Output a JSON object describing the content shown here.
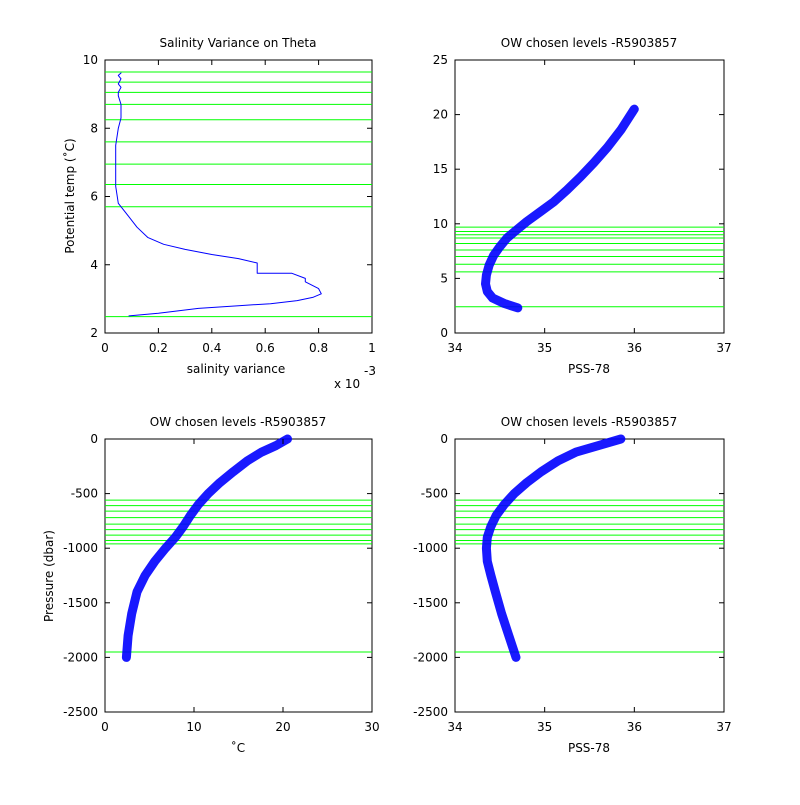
{
  "figure": {
    "colors": {
      "background": "#ffffff",
      "data_line": "#0000ff",
      "level_line": "#00ff00",
      "axes": "#000000"
    }
  },
  "chart_data": [
    {
      "id": "salinity-variance",
      "type": "line",
      "title": "Salinity Variance on Theta",
      "xlabel": "salinity variance",
      "ylabel": "Potential temp (˚C)",
      "xlim": [
        0,
        1
      ],
      "ylim": [
        2,
        10
      ],
      "x_multiplier_label": "x 10",
      "x_multiplier_exponent": "-3",
      "xticks": [
        0,
        0.2,
        0.4,
        0.6,
        0.8,
        1
      ],
      "yticks": [
        2,
        4,
        6,
        8,
        10
      ],
      "xtick_labels": [
        "0",
        "0.2",
        "0.4",
        "0.6",
        "0.8",
        "1"
      ],
      "ytick_labels": [
        "2",
        "4",
        "6",
        "8",
        "10"
      ],
      "grid": false,
      "series": [
        {
          "x": [
            0.09,
            0.2,
            0.35,
            0.5,
            0.62,
            0.72,
            0.78,
            0.81,
            0.8,
            0.75,
            0.75,
            0.7,
            0.57,
            0.57,
            0.5,
            0.4,
            0.3,
            0.22,
            0.16,
            0.12,
            0.08,
            0.05,
            0.04,
            0.04,
            0.04,
            0.05,
            0.06,
            0.06,
            0.05,
            0.05,
            0.06,
            0.05,
            0.06,
            0.05,
            0.06
          ],
          "y": [
            2.5,
            2.58,
            2.72,
            2.8,
            2.86,
            2.95,
            3.05,
            3.15,
            3.3,
            3.5,
            3.6,
            3.75,
            3.75,
            4.05,
            4.18,
            4.3,
            4.45,
            4.6,
            4.8,
            5.1,
            5.5,
            5.8,
            6.3,
            6.9,
            7.5,
            8.0,
            8.3,
            8.7,
            8.95,
            9.05,
            9.2,
            9.3,
            9.45,
            9.55,
            9.62
          ]
        }
      ],
      "hlines": [
        2.48,
        5.7,
        6.35,
        6.95,
        7.6,
        8.25,
        8.7,
        9.05,
        9.35,
        9.65
      ]
    },
    {
      "id": "theta-salinity",
      "type": "line",
      "title": "OW chosen levels -R5903857",
      "xlabel": "PSS-78",
      "ylabel": "",
      "xlim": [
        34,
        37
      ],
      "ylim": [
        0,
        25
      ],
      "xticks": [
        34,
        35,
        36,
        37
      ],
      "yticks": [
        0,
        5,
        10,
        15,
        20,
        25
      ],
      "xtick_labels": [
        "34",
        "35",
        "36",
        "37"
      ],
      "ytick_labels": [
        "0",
        "5",
        "10",
        "15",
        "20",
        "25"
      ],
      "grid": false,
      "series": [
        {
          "x": [
            34.7,
            34.55,
            34.42,
            34.36,
            34.34,
            34.35,
            34.38,
            34.43,
            34.5,
            34.58,
            34.68,
            34.8,
            34.95,
            35.1,
            35.25,
            35.4,
            35.55,
            35.7,
            35.85,
            36.0
          ],
          "y": [
            2.3,
            2.7,
            3.2,
            3.8,
            4.5,
            5.3,
            6.2,
            7.1,
            7.9,
            8.7,
            9.4,
            10.2,
            11.1,
            12.0,
            13.1,
            14.3,
            15.6,
            17.0,
            18.6,
            20.5
          ]
        }
      ],
      "hlines": [
        2.4,
        5.6,
        6.3,
        7.0,
        7.6,
        8.2,
        8.7,
        9.0,
        9.3,
        9.7
      ]
    },
    {
      "id": "pressure-temperature",
      "type": "line",
      "title": "OW chosen levels -R5903857",
      "xlabel": "˚C",
      "ylabel": "Pressure (dbar)",
      "xlim": [
        0,
        30
      ],
      "ylim": [
        -2500,
        0
      ],
      "xticks": [
        0,
        10,
        20,
        30
      ],
      "yticks": [
        -2500,
        -2000,
        -1500,
        -1000,
        -500,
        0
      ],
      "xtick_labels": [
        "0",
        "10",
        "20",
        "30"
      ],
      "ytick_labels": [
        "-2500",
        "-2000",
        "-1500",
        "-1000",
        "-500",
        "0"
      ],
      "grid": false,
      "series": [
        {
          "x": [
            2.4,
            2.6,
            3.0,
            3.6,
            4.5,
            5.6,
            6.8,
            7.9,
            8.8,
            9.6,
            10.5,
            11.6,
            12.9,
            14.4,
            16.0,
            17.6,
            19.2,
            20.5
          ],
          "y": [
            -2000,
            -1800,
            -1600,
            -1400,
            -1250,
            -1120,
            -1000,
            -900,
            -800,
            -700,
            -600,
            -500,
            -400,
            -300,
            -200,
            -120,
            -60,
            0
          ]
        }
      ],
      "hlines": [
        -560,
        -610,
        -660,
        -720,
        -780,
        -830,
        -880,
        -930,
        -960,
        -1950
      ]
    },
    {
      "id": "pressure-salinity",
      "type": "line",
      "title": "OW chosen levels -R5903857",
      "xlabel": "PSS-78",
      "ylabel": "",
      "xlim": [
        34,
        37
      ],
      "ylim": [
        -2500,
        0
      ],
      "xticks": [
        34,
        35,
        36,
        37
      ],
      "yticks": [
        -2500,
        -2000,
        -1500,
        -1000,
        -500,
        0
      ],
      "xtick_labels": [
        "34",
        "35",
        "36",
        "37"
      ],
      "ytick_labels": [
        "-2500",
        "-2000",
        "-1500",
        "-1000",
        "-500",
        "0"
      ],
      "grid": false,
      "series": [
        {
          "x": [
            34.68,
            34.6,
            34.52,
            34.45,
            34.4,
            34.36,
            34.35,
            34.36,
            34.4,
            34.46,
            34.55,
            34.66,
            34.8,
            34.96,
            35.15,
            35.35,
            35.6,
            35.85
          ],
          "y": [
            -2000,
            -1800,
            -1600,
            -1400,
            -1250,
            -1120,
            -1000,
            -900,
            -800,
            -700,
            -600,
            -500,
            -400,
            -300,
            -200,
            -120,
            -60,
            0
          ]
        }
      ],
      "hlines": [
        -560,
        -610,
        -660,
        -720,
        -780,
        -830,
        -880,
        -930,
        -960,
        -1950
      ]
    }
  ]
}
